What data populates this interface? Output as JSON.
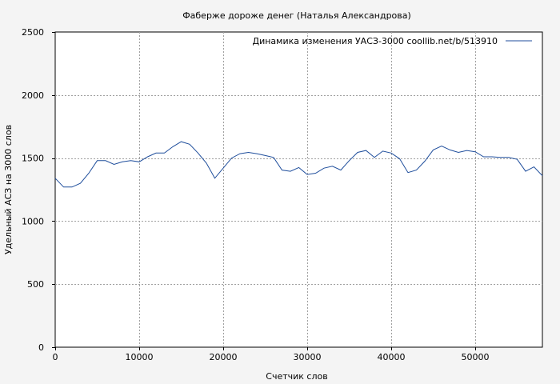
{
  "chart_data": {
    "type": "line",
    "title": "Фаберже дороже денег (Наталья Александрова)",
    "xlabel": "Счетчик слов",
    "ylabel": "Удельный АСЗ на 3000 слов",
    "xlim": [
      0,
      58000
    ],
    "ylim": [
      0,
      2500
    ],
    "xticks": [
      0,
      10000,
      20000,
      30000,
      40000,
      50000
    ],
    "yticks": [
      0,
      500,
      1000,
      1500,
      2000,
      2500
    ],
    "grid": true,
    "legend": "top-right",
    "series": [
      {
        "name": "Динамика изменения УАСЗ-3000  coollib.net/b/513910",
        "color": "#1f4e9c",
        "x": [
          0,
          1000,
          2000,
          3000,
          4000,
          5000,
          6000,
          7000,
          8000,
          9000,
          10000,
          11000,
          12000,
          13000,
          14000,
          15000,
          16000,
          17000,
          18000,
          19000,
          20000,
          21000,
          22000,
          23000,
          24000,
          25000,
          26000,
          27000,
          28000,
          29000,
          30000,
          31000,
          32000,
          33000,
          34000,
          35000,
          36000,
          37000,
          38000,
          39000,
          40000,
          41000,
          42000,
          43000,
          44000,
          45000,
          46000,
          47000,
          48000,
          49000,
          50000,
          51000,
          52000,
          53000,
          54000,
          55000,
          56000,
          57000,
          58000
        ],
        "values": [
          1340,
          1270,
          1270,
          1300,
          1380,
          1480,
          1480,
          1450,
          1470,
          1480,
          1470,
          1510,
          1540,
          1540,
          1590,
          1630,
          1610,
          1540,
          1460,
          1340,
          1420,
          1500,
          1535,
          1545,
          1535,
          1520,
          1505,
          1405,
          1395,
          1425,
          1370,
          1380,
          1420,
          1435,
          1405,
          1480,
          1545,
          1560,
          1505,
          1555,
          1540,
          1495,
          1385,
          1405,
          1475,
          1565,
          1595,
          1565,
          1545,
          1560,
          1550,
          1510,
          1510,
          1505,
          1505,
          1490,
          1395,
          1430,
          1360
        ]
      }
    ]
  }
}
